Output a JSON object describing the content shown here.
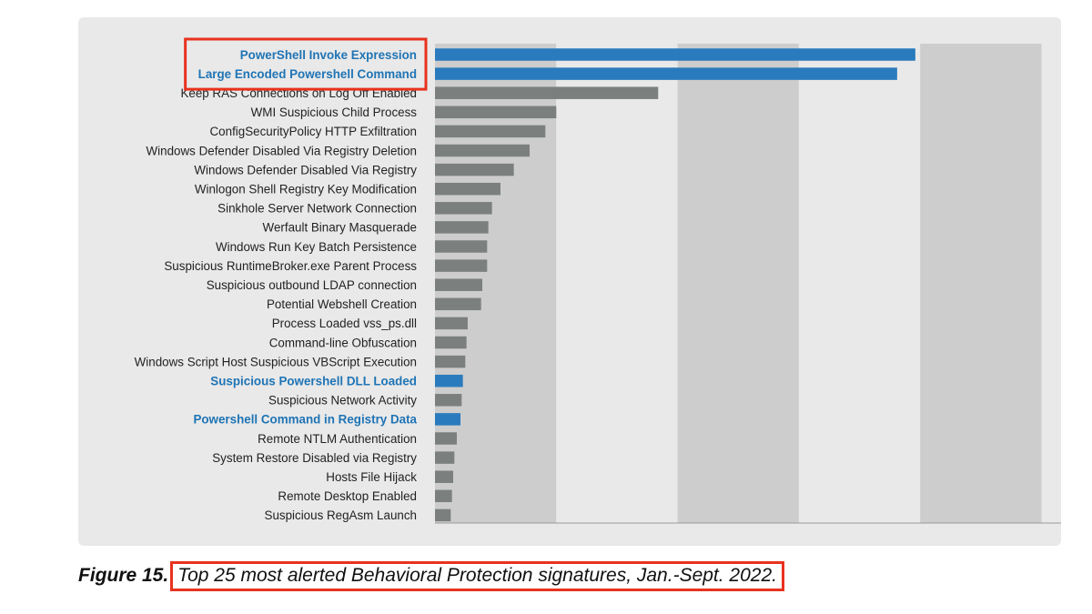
{
  "chart_data": {
    "type": "bar",
    "orientation": "horizontal",
    "categories": [
      "PowerShell Invoke Expression",
      "Large Encoded Powershell Command",
      "Keep RAS Connections on Log Off Enabled",
      "WMI Suspicious Child Process",
      "ConfigSecurityPolicy HTTP Exfiltration",
      "Windows Defender Disabled Via Registry Deletion",
      "Windows Defender Disabled Via Registry",
      "Winlogon Shell Registry Key Modification",
      "Sinkhole Server Network Connection",
      "Werfault Binary Masquerade",
      "Windows Run Key Batch Persistence",
      "Suspicious RuntimeBroker.exe Parent Process",
      "Suspicious outbound LDAP connection",
      "Potential Webshell Creation",
      "Process Loaded vss_ps.dll",
      "Command-line Obfuscation",
      "Windows Script Host Suspicious VBScript Execution",
      "Suspicious Powershell DLL Loaded",
      "Suspicious Network Activity",
      "Powershell Command in Registry Data",
      "Remote NTLM Authentication",
      "System Restore Disabled via Registry",
      "Hosts File Hijack",
      "Remote Desktop Enabled",
      "Suspicious RegAsm Launch"
    ],
    "values": [
      3.96,
      3.81,
      1.84,
      1.0,
      0.91,
      0.78,
      0.65,
      0.54,
      0.47,
      0.44,
      0.43,
      0.43,
      0.39,
      0.38,
      0.27,
      0.26,
      0.25,
      0.23,
      0.22,
      0.21,
      0.18,
      0.16,
      0.15,
      0.14,
      0.13
    ],
    "highlighted": [
      "PowerShell Invoke Expression",
      "Large Encoded Powershell Command",
      "Suspicious Powershell DLL Loaded",
      "Powershell Command in Registry Data"
    ],
    "xlim": [
      0,
      5
    ],
    "grid": "alternating vertical bands",
    "colors": {
      "highlight_bar": "#2a7bbd",
      "default_bar": "#7b807e",
      "highlight_label": "#1f74b5",
      "default_label": "#222222",
      "band_dark": "#cdcdcd",
      "panel": "#e9e9e9",
      "callout_border": "#e8321e"
    }
  },
  "caption": {
    "figure": "Figure 15.",
    "text": "Top 25 most alerted Behavioral Protection signatures, Jan.-Sept. 2022."
  }
}
